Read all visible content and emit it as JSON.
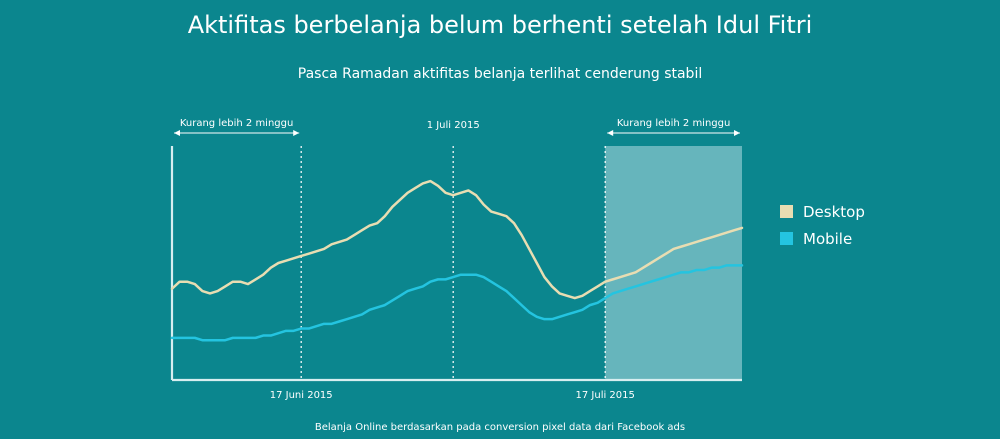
{
  "title": "Aktifitas berbelanja belum berhenti setelah Idul Fitri",
  "subtitle": "Pasca Ramadan aktifitas belanja terlihat cenderung stabil",
  "footnote": "Belanja Online berdasarkan pada conversion pixel data dari Facebook ads",
  "colors": {
    "background": "#0b868e",
    "desktop": "#e8ddb2",
    "mobile": "#24c4e0",
    "axis": "#d7eef0",
    "highlight": "#9ed2d8"
  },
  "chart_data": {
    "type": "line",
    "x": [
      0,
      1,
      2,
      3,
      4,
      5,
      6,
      7,
      8,
      9,
      10,
      11,
      12,
      13,
      14,
      15,
      16,
      17,
      18,
      19,
      20,
      21,
      22,
      23,
      24,
      25,
      26,
      27,
      28,
      29,
      30,
      31,
      32,
      33,
      34,
      35,
      36,
      37,
      38,
      39,
      40,
      41,
      42,
      43,
      44,
      45,
      46,
      47,
      48,
      49,
      50,
      51,
      52,
      53,
      54,
      55,
      56,
      57,
      58,
      59,
      60,
      61,
      62,
      63,
      64,
      65,
      66,
      67,
      68,
      69,
      70,
      71,
      72,
      73,
      74,
      75
    ],
    "xlim": [
      0,
      75
    ],
    "ylim": [
      0,
      100
    ],
    "series": [
      {
        "name": "Desktop",
        "values": [
          39,
          42,
          42,
          41,
          38,
          37,
          38,
          40,
          42,
          42,
          41,
          43,
          45,
          48,
          50,
          51,
          52,
          53,
          54,
          55,
          56,
          58,
          59,
          60,
          62,
          64,
          66,
          67,
          70,
          74,
          77,
          80,
          82,
          84,
          85,
          83,
          80,
          79,
          80,
          81,
          79,
          75,
          72,
          71,
          70,
          67,
          62,
          56,
          50,
          44,
          40,
          37,
          36,
          35,
          36,
          38,
          40,
          42,
          43,
          44,
          45,
          46,
          48,
          50,
          52,
          54,
          56,
          57,
          58,
          59,
          60,
          61,
          62,
          63,
          64,
          65
        ]
      },
      {
        "name": "Mobile",
        "values": [
          18,
          18,
          18,
          18,
          17,
          17,
          17,
          17,
          18,
          18,
          18,
          18,
          19,
          19,
          20,
          21,
          21,
          22,
          22,
          23,
          24,
          24,
          25,
          26,
          27,
          28,
          30,
          31,
          32,
          34,
          36,
          38,
          39,
          40,
          42,
          43,
          43,
          44,
          45,
          45,
          45,
          44,
          42,
          40,
          38,
          35,
          32,
          29,
          27,
          26,
          26,
          27,
          28,
          29,
          30,
          32,
          33,
          35,
          37,
          38,
          39,
          40,
          41,
          42,
          43,
          44,
          45,
          46,
          46,
          47,
          47,
          48,
          48,
          49,
          49,
          49
        ]
      }
    ],
    "reference_lines": [
      {
        "x": 17,
        "label": "17 Juni 2015",
        "label_position": "bottom"
      },
      {
        "x": 37,
        "label": "1 Juli 2015",
        "label_position": "top"
      },
      {
        "x": 57,
        "label": "17 Juli 2015",
        "label_position": "bottom"
      }
    ],
    "brackets": [
      {
        "x_start": 0,
        "x_end": 17,
        "label": "Kurang lebih 2 minggu"
      },
      {
        "x_start": 57,
        "x_end": 75,
        "label": "Kurang lebih 2 minggu"
      }
    ],
    "highlight_range": [
      57,
      75
    ],
    "grid": false,
    "legend_position": "right"
  }
}
